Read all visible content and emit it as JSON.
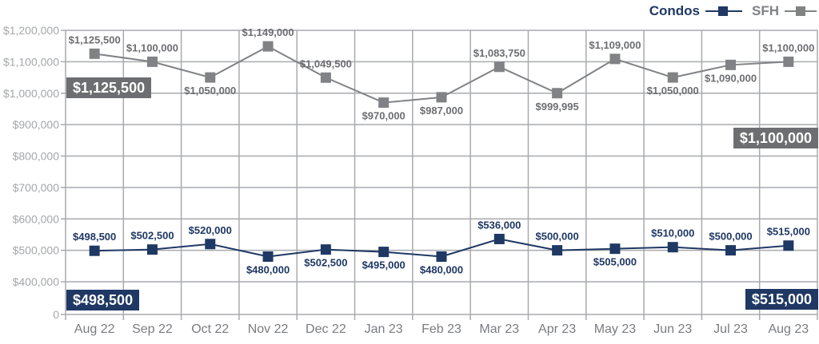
{
  "legend": {
    "condos_label": "Condos",
    "sfh_label": "SFH",
    "position": "top-right"
  },
  "colors": {
    "condos": "#1F3864",
    "condos_text": "#1F3864",
    "sfh": "#808285",
    "sfh_text": "#6D6E71",
    "grid": "#A8AAAD",
    "y_axis_text": "#A5A7AA",
    "x_axis_text": "#7A7C80",
    "callout_text": "#FFFFFF",
    "callout_gray_bg": "#6D6E71",
    "callout_navy_bg": "#1F3864"
  },
  "chart_data": {
    "type": "line",
    "grid": true,
    "legend_position": "top-right",
    "categories": [
      "Aug 22",
      "Sep 22",
      "Oct 22",
      "Nov 22",
      "Dec 22",
      "Jan 23",
      "Feb 23",
      "Mar 23",
      "Apr 23",
      "May 23",
      "Jun 23",
      "Jul 23",
      "Aug 23"
    ],
    "series": [
      {
        "name": "Condos",
        "color": "#1F3864",
        "label_color": "#1F3864",
        "values": [
          498500,
          502500,
          520000,
          480000,
          502500,
          495000,
          480000,
          536000,
          500000,
          505000,
          510000,
          500000,
          515000
        ],
        "labels": [
          "$498,500",
          "$502,500",
          "$520,000",
          "$480,000",
          "$502,500",
          "$495,000",
          "$480,000",
          "$536,000",
          "$500,000",
          "$505,000",
          "$510,000",
          "$500,000",
          "$515,000"
        ],
        "label_positions": [
          "above",
          "above",
          "above",
          "below",
          "below",
          "below",
          "below",
          "above",
          "above",
          "below",
          "above",
          "above",
          "above"
        ]
      },
      {
        "name": "SFH",
        "color": "#808285",
        "label_color": "#6D6E71",
        "values": [
          1125500,
          1100000,
          1050000,
          1149000,
          1049500,
          970000,
          987000,
          1083750,
          999995,
          1109000,
          1050000,
          1090000,
          1100000
        ],
        "labels": [
          "$1,125,500",
          "$1,100,000",
          "$1,050,000",
          "$1,149,000",
          "$1,049,500",
          "$970,000",
          "$987,000",
          "$1,083,750",
          "$999,995",
          "$1,109,000",
          "$1,050,000",
          "$1,090,000",
          "$1,100,000"
        ],
        "label_positions": [
          "above",
          "above",
          "below",
          "above",
          "above",
          "below",
          "below",
          "above",
          "below",
          "above",
          "below",
          "below",
          "above"
        ]
      }
    ],
    "y_axis": {
      "tick_labels": [
        "$1,200,000",
        "$1,100,000",
        "$1,000,000",
        "$900,000",
        "$800,000",
        "$700,000",
        "$600,000",
        "$500,000",
        "$400,000"
      ],
      "tick_values": [
        1200000,
        1100000,
        1000000,
        900000,
        800000,
        700000,
        600000,
        500000,
        400000
      ],
      "baseline_label": "0",
      "baseline_value": 0,
      "broken_axis": true,
      "step": 100000
    },
    "callouts": {
      "sfh_first": {
        "text": "$1,125,500",
        "series": "SFH",
        "point": "Aug 22",
        "variant": "gray"
      },
      "sfh_last": {
        "text": "$1,100,000",
        "series": "SFH",
        "point": "Aug 23",
        "variant": "gray"
      },
      "condos_first": {
        "text": "$498,500",
        "series": "Condos",
        "point": "Aug 22",
        "variant": "navy"
      },
      "condos_last": {
        "text": "$515,000",
        "series": "Condos",
        "point": "Aug 23",
        "variant": "navy"
      }
    }
  }
}
